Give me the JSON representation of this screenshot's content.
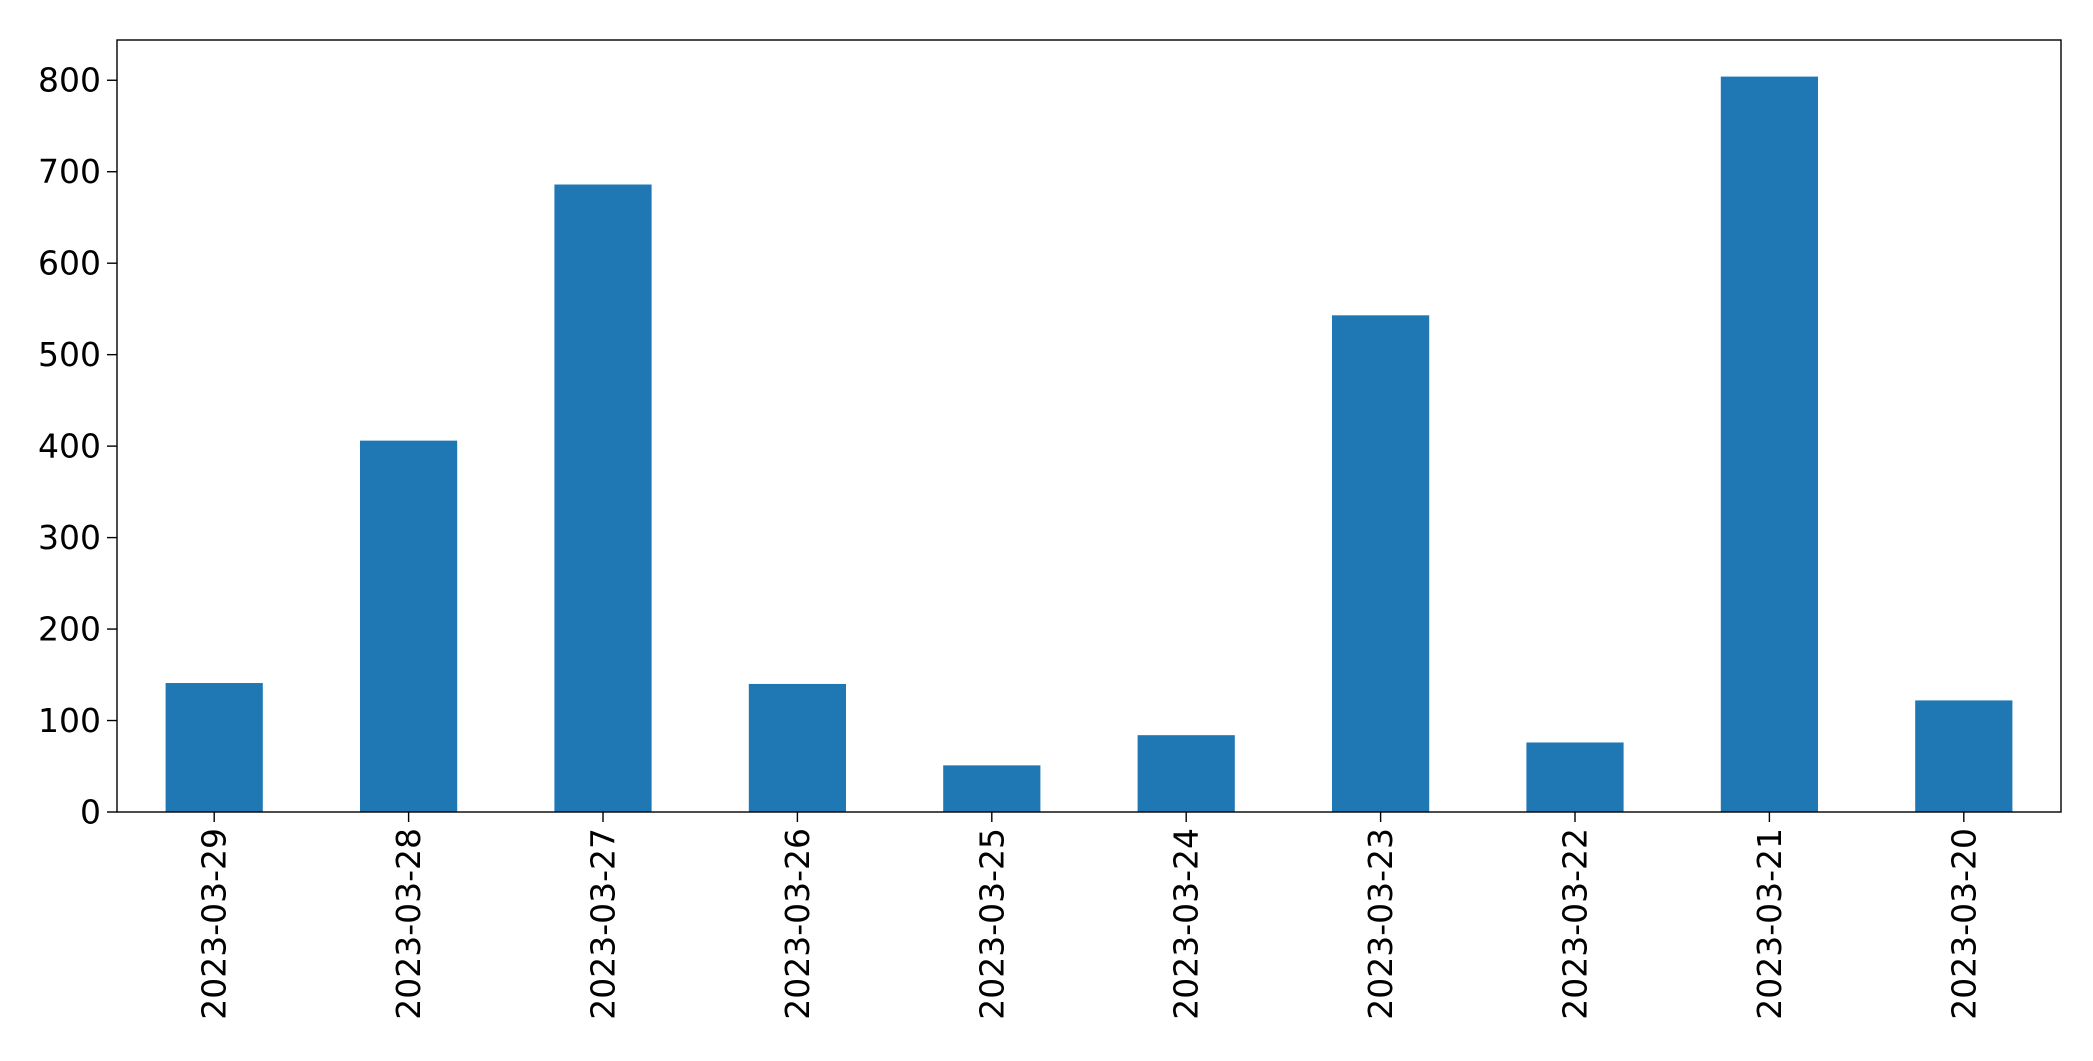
{
  "chart_data": {
    "type": "bar",
    "title": "",
    "xlabel": "",
    "ylabel": "",
    "categories": [
      "2023-03-29",
      "2023-03-28",
      "2023-03-27",
      "2023-03-26",
      "2023-03-25",
      "2023-03-24",
      "2023-03-23",
      "2023-03-22",
      "2023-03-21",
      "2023-03-20"
    ],
    "values": [
      141,
      406,
      686,
      140,
      51,
      84,
      543,
      76,
      804,
      122
    ],
    "ylim": [
      0,
      844
    ],
    "yticks": [
      0,
      100,
      200,
      300,
      400,
      500,
      600,
      700,
      800
    ],
    "grid": false,
    "legend": "none",
    "colors": {
      "bar": "#1f77b4",
      "axis": "#000000",
      "background": "#ffffff"
    }
  }
}
